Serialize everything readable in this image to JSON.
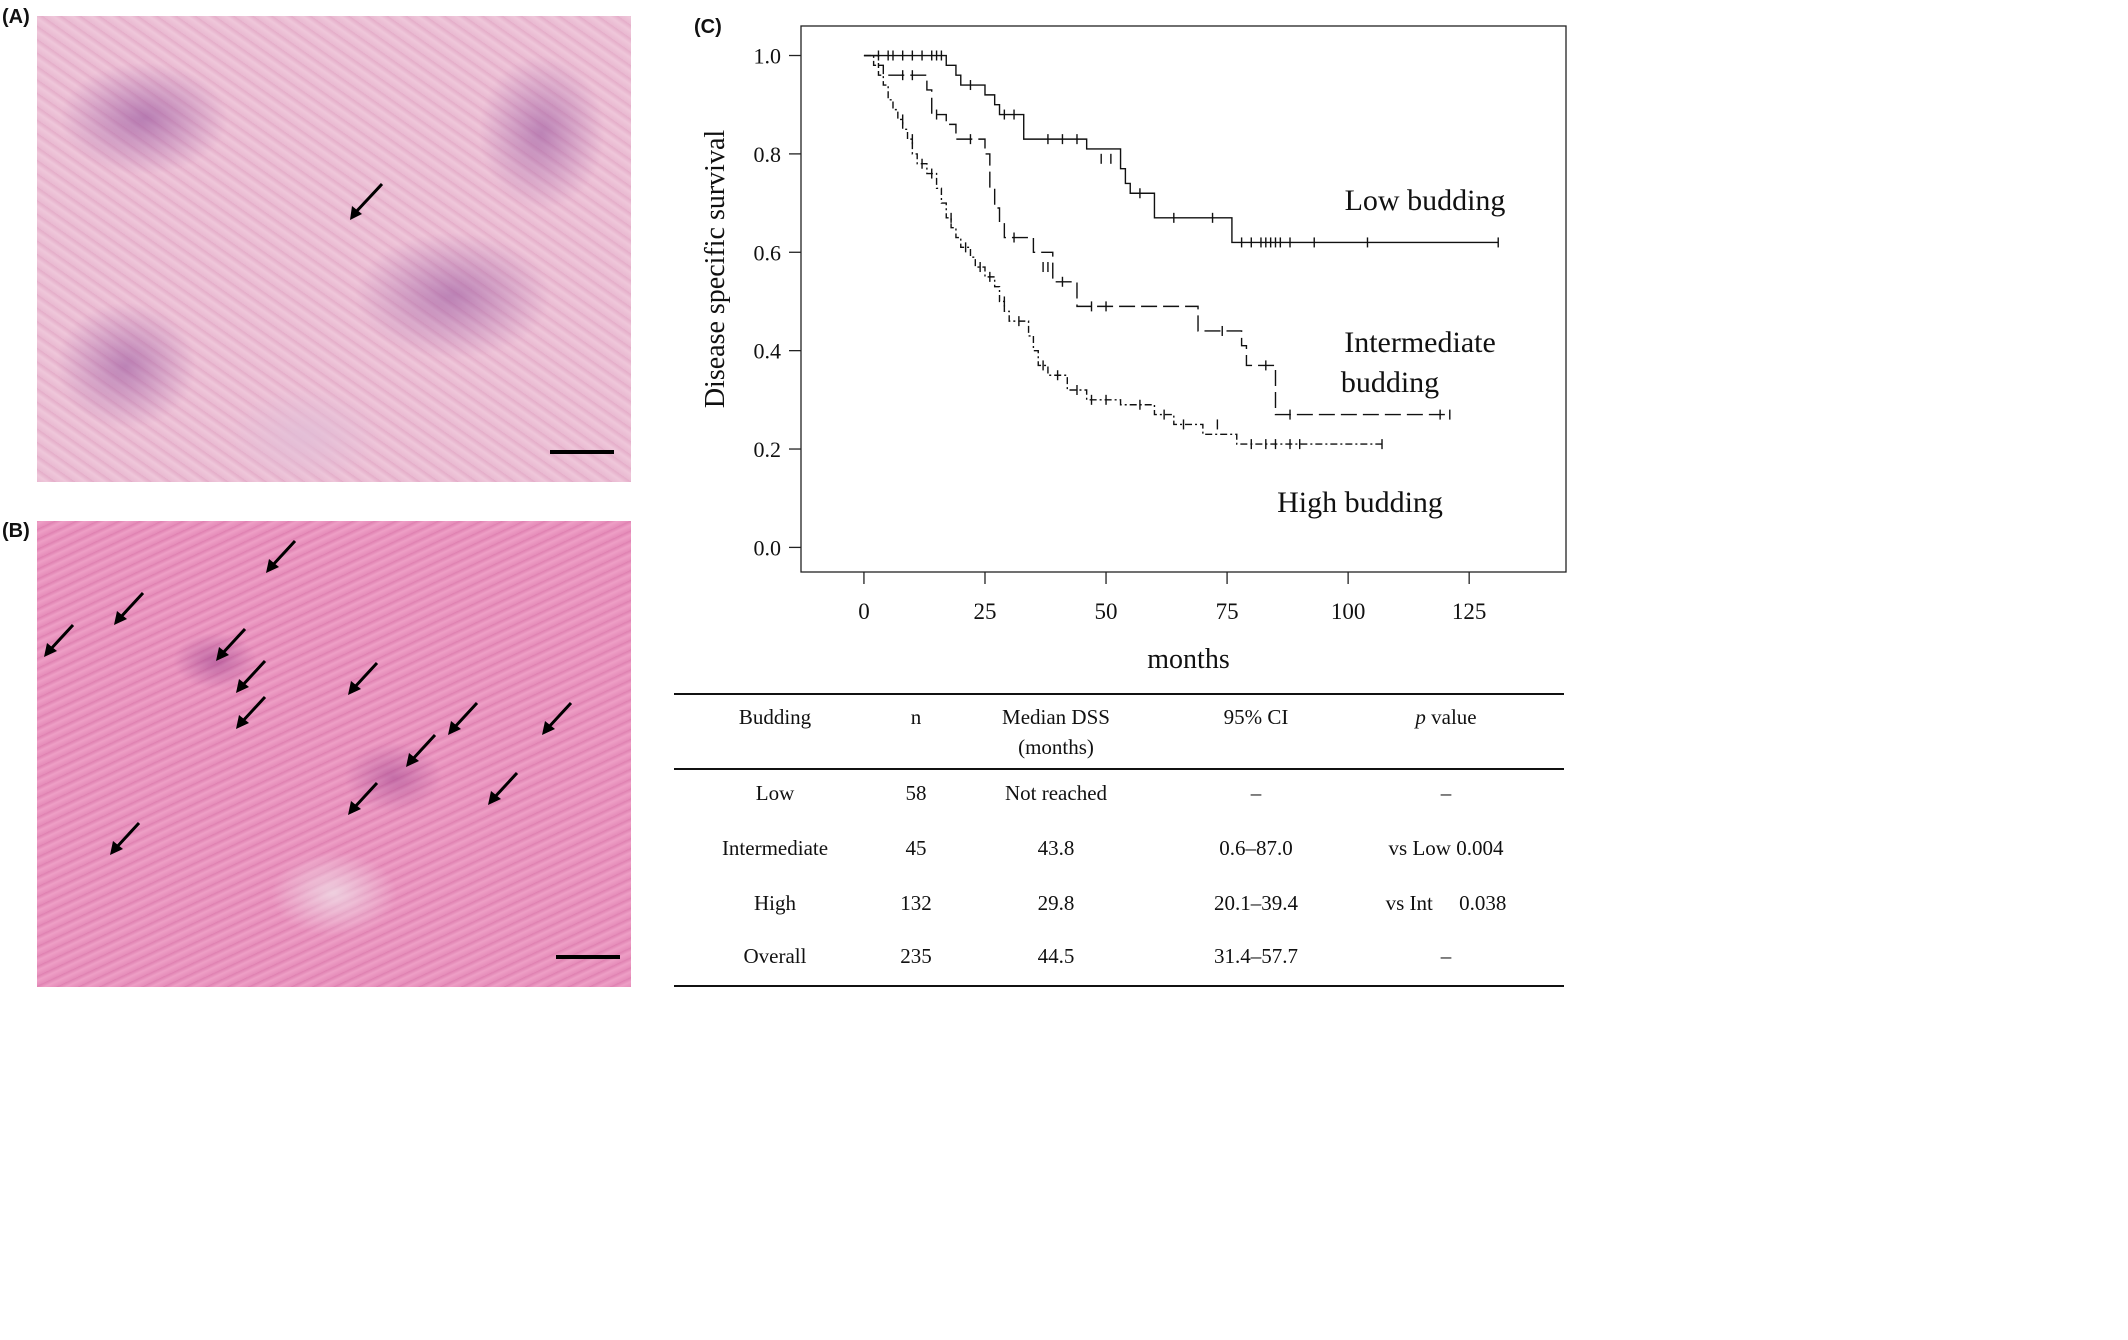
{
  "panels": {
    "a_label": "(A)",
    "b_label": "(B)",
    "c_label": "(C)"
  },
  "chart_data": {
    "type": "line",
    "title": "",
    "xlabel": "months",
    "ylabel": "Disease specific survival",
    "xlim": [
      -13,
      145
    ],
    "ylim": [
      -0.05,
      1.06
    ],
    "xticks": [
      0,
      25,
      50,
      75,
      100,
      125
    ],
    "yticks": [
      0.0,
      0.2,
      0.4,
      0.6,
      0.8,
      1.0
    ],
    "xtick_labels": [
      "0",
      "25",
      "50",
      "75",
      "100",
      "125"
    ],
    "ytick_labels": [
      "0.0",
      "0.2",
      "0.4",
      "0.6",
      "0.8",
      "1.0"
    ],
    "grid": false,
    "series": [
      {
        "name": "Low budding",
        "label_lines": [
          "Low budding"
        ],
        "style": "solid",
        "steps": [
          [
            0,
            1.0
          ],
          [
            17,
            0.98
          ],
          [
            19,
            0.96
          ],
          [
            20,
            0.94
          ],
          [
            25,
            0.92
          ],
          [
            27,
            0.9
          ],
          [
            28,
            0.88
          ],
          [
            33,
            0.83
          ],
          [
            46,
            0.81
          ],
          [
            53,
            0.77
          ],
          [
            54,
            0.74
          ],
          [
            55,
            0.72
          ],
          [
            60,
            0.67
          ],
          [
            76,
            0.62
          ],
          [
            131,
            0.62
          ]
        ],
        "censors": [
          [
            3,
            1.0
          ],
          [
            5,
            1.0
          ],
          [
            6,
            1.0
          ],
          [
            8,
            1.0
          ],
          [
            10,
            1.0
          ],
          [
            12,
            1.0
          ],
          [
            14,
            1.0
          ],
          [
            15,
            1.0
          ],
          [
            16,
            1.0
          ],
          [
            22,
            0.94
          ],
          [
            29,
            0.88
          ],
          [
            31,
            0.88
          ],
          [
            38,
            0.83
          ],
          [
            41,
            0.83
          ],
          [
            44,
            0.83
          ],
          [
            49,
            0.79
          ],
          [
            51,
            0.79
          ],
          [
            57,
            0.72
          ],
          [
            64,
            0.67
          ],
          [
            72,
            0.67
          ],
          [
            78,
            0.62
          ],
          [
            80,
            0.62
          ],
          [
            82,
            0.62
          ],
          [
            83,
            0.62
          ],
          [
            84,
            0.62
          ],
          [
            85,
            0.62
          ],
          [
            86,
            0.62
          ],
          [
            88,
            0.62
          ],
          [
            93,
            0.62
          ],
          [
            104,
            0.62
          ],
          [
            131,
            0.62
          ]
        ]
      },
      {
        "name": "Intermediate budding",
        "label_lines": [
          "Intermediate",
          "budding"
        ],
        "style": "dashed",
        "steps": [
          [
            0,
            1.0
          ],
          [
            3,
            0.98
          ],
          [
            4,
            0.96
          ],
          [
            13,
            0.93
          ],
          [
            14,
            0.88
          ],
          [
            17,
            0.86
          ],
          [
            19,
            0.83
          ],
          [
            25,
            0.8
          ],
          [
            26,
            0.73
          ],
          [
            27,
            0.69
          ],
          [
            28,
            0.66
          ],
          [
            29,
            0.63
          ],
          [
            35,
            0.6
          ],
          [
            39,
            0.54
          ],
          [
            44,
            0.49
          ],
          [
            69,
            0.44
          ],
          [
            78,
            0.41
          ],
          [
            79,
            0.37
          ],
          [
            85,
            0.27
          ],
          [
            121,
            0.27
          ]
        ],
        "censors": [
          [
            8,
            0.96
          ],
          [
            10,
            0.96
          ],
          [
            15,
            0.88
          ],
          [
            22,
            0.83
          ],
          [
            31,
            0.63
          ],
          [
            37,
            0.57
          ],
          [
            38,
            0.57
          ],
          [
            41,
            0.54
          ],
          [
            47,
            0.49
          ],
          [
            50,
            0.49
          ],
          [
            74,
            0.44
          ],
          [
            83,
            0.37
          ],
          [
            88,
            0.27
          ],
          [
            119,
            0.27
          ],
          [
            121,
            0.27
          ]
        ]
      },
      {
        "name": "High budding",
        "label_lines": [
          "High budding"
        ],
        "style": "dashdot",
        "steps": [
          [
            0,
            1.0
          ],
          [
            2,
            0.98
          ],
          [
            3,
            0.96
          ],
          [
            4,
            0.94
          ],
          [
            5,
            0.91
          ],
          [
            6,
            0.89
          ],
          [
            7,
            0.87
          ],
          [
            8,
            0.85
          ],
          [
            9,
            0.83
          ],
          [
            10,
            0.8
          ],
          [
            11,
            0.78
          ],
          [
            13,
            0.76
          ],
          [
            15,
            0.73
          ],
          [
            16,
            0.7
          ],
          [
            17,
            0.67
          ],
          [
            18,
            0.65
          ],
          [
            19,
            0.63
          ],
          [
            20,
            0.61
          ],
          [
            22,
            0.59
          ],
          [
            23,
            0.57
          ],
          [
            25,
            0.55
          ],
          [
            27,
            0.53
          ],
          [
            28,
            0.5
          ],
          [
            29,
            0.48
          ],
          [
            30,
            0.46
          ],
          [
            34,
            0.43
          ],
          [
            35,
            0.4
          ],
          [
            36,
            0.37
          ],
          [
            38,
            0.35
          ],
          [
            42,
            0.32
          ],
          [
            46,
            0.3
          ],
          [
            53,
            0.29
          ],
          [
            60,
            0.27
          ],
          [
            64,
            0.25
          ],
          [
            70,
            0.23
          ],
          [
            77,
            0.21
          ],
          [
            107,
            0.21
          ]
        ],
        "censors": [
          [
            8,
            0.87
          ],
          [
            10,
            0.83
          ],
          [
            12,
            0.78
          ],
          [
            14,
            0.76
          ],
          [
            18,
            0.67
          ],
          [
            21,
            0.61
          ],
          [
            24,
            0.57
          ],
          [
            26,
            0.55
          ],
          [
            29,
            0.5
          ],
          [
            32,
            0.46
          ],
          [
            37,
            0.37
          ],
          [
            40,
            0.35
          ],
          [
            44,
            0.32
          ],
          [
            47,
            0.3
          ],
          [
            50,
            0.3
          ],
          [
            57,
            0.29
          ],
          [
            62,
            0.27
          ],
          [
            66,
            0.25
          ],
          [
            73,
            0.25
          ],
          [
            80,
            0.21
          ],
          [
            83,
            0.21
          ],
          [
            85,
            0.21
          ],
          [
            88,
            0.21
          ],
          [
            90,
            0.21
          ],
          [
            107,
            0.21
          ]
        ]
      }
    ]
  },
  "table": {
    "headers": {
      "budding": "Budding",
      "n": "n",
      "median_line1": "Median DSS",
      "median_line2": "(months)",
      "ci": "95% CI",
      "p_italic": "p",
      "p_rest": " value"
    },
    "rows": [
      {
        "budding": "Low",
        "n": "58",
        "median": "Not reached",
        "ci": "–",
        "p": "–"
      },
      {
        "budding": "Intermediate",
        "n": "45",
        "median": "43.8",
        "ci": "0.6–87.0",
        "p": "vs Low 0.004"
      },
      {
        "budding": "High",
        "n": "132",
        "median": "29.8",
        "ci": "20.1–39.4",
        "p": "vs Int     0.038"
      },
      {
        "budding": "Overall",
        "n": "235",
        "median": "44.5",
        "ci": "31.4–57.7",
        "p": "–"
      }
    ]
  }
}
